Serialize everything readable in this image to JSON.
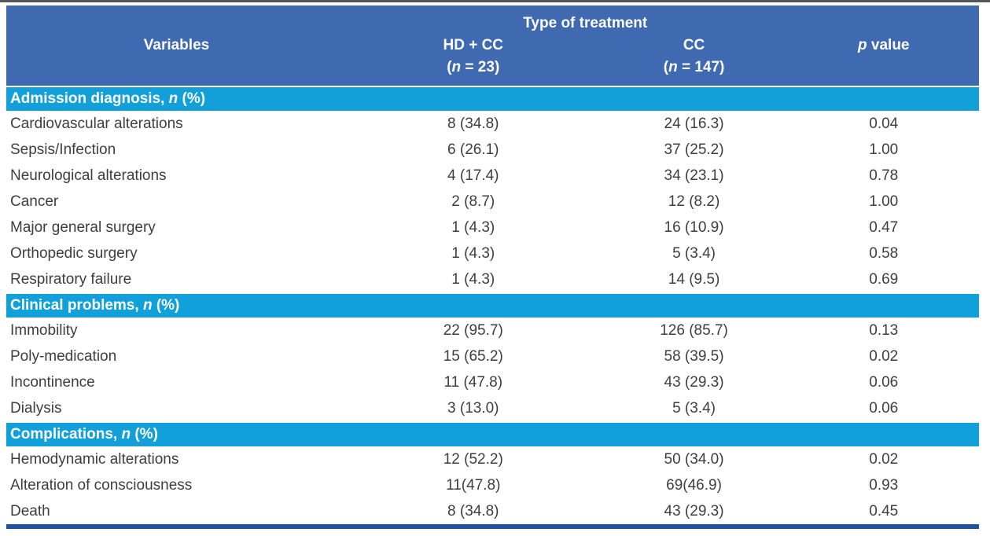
{
  "colors": {
    "header_bg": "#3F69B1",
    "section_bg": "#12A0DA",
    "top_rule": "#54565A",
    "bottom_rule": "#1F51A4",
    "header_text": "#FFFFFF",
    "body_text": "#3E3E40"
  },
  "header": {
    "spanner": "Type of treatment",
    "variables": "Variables",
    "group_hdcc": {
      "label": "HD + CC",
      "n_pre": "(",
      "n_italic": "n",
      "n_post": " = 23)"
    },
    "group_cc": {
      "label": "CC",
      "n_pre": "(",
      "n_italic": "n",
      "n_post": " = 147)"
    },
    "p_column": {
      "italic": "p",
      "rest": " value"
    }
  },
  "sections": [
    {
      "title_prefix": "Admission diagnosis, ",
      "title_italic": "n",
      "title_suffix": " (%)",
      "rows": [
        {
          "variable": "Cardiovascular alterations",
          "hdcc": "8 (34.8)",
          "cc": "24 (16.3)",
          "p": "0.04"
        },
        {
          "variable": "Sepsis/Infection",
          "hdcc": "6 (26.1)",
          "cc": "37 (25.2)",
          "p": "1.00"
        },
        {
          "variable": "Neurological alterations",
          "hdcc": "4 (17.4)",
          "cc": "34 (23.1)",
          "p": "0.78"
        },
        {
          "variable": "Cancer",
          "hdcc": "2 (8.7)",
          "cc": "12 (8.2)",
          "p": "1.00"
        },
        {
          "variable": "Major general surgery",
          "hdcc": "1 (4.3)",
          "cc": "16 (10.9)",
          "p": "0.47"
        },
        {
          "variable": "Orthopedic surgery",
          "hdcc": "1 (4.3)",
          "cc": "5 (3.4)",
          "p": "0.58"
        },
        {
          "variable": "Respiratory failure",
          "hdcc": "1 (4.3)",
          "cc": "14 (9.5)",
          "p": "0.69"
        }
      ]
    },
    {
      "title_prefix": "Clinical problems, ",
      "title_italic": "n",
      "title_suffix": " (%)",
      "rows": [
        {
          "variable": "Immobility",
          "hdcc": "22 (95.7)",
          "cc": "126 (85.7)",
          "p": "0.13"
        },
        {
          "variable": "Poly-medication",
          "hdcc": "15 (65.2)",
          "cc": "58 (39.5)",
          "p": "0.02"
        },
        {
          "variable": "Incontinence",
          "hdcc": "11 (47.8)",
          "cc": "43 (29.3)",
          "p": "0.06"
        },
        {
          "variable": "Dialysis",
          "hdcc": "3 (13.0)",
          "cc": "5 (3.4)",
          "p": "0.06"
        }
      ]
    },
    {
      "title_prefix": "Complications, ",
      "title_italic": "n",
      "title_suffix": " (%)",
      "rows": [
        {
          "variable": "Hemodynamic alterations",
          "hdcc": "12 (52.2)",
          "cc": "50 (34.0)",
          "p": "0.02"
        },
        {
          "variable": "Alteration of consciousness",
          "hdcc": "11(47.8)",
          "cc": "69(46.9)",
          "p": "0.93"
        },
        {
          "variable": "Death",
          "hdcc": "8 (34.8)",
          "cc": "43 (29.3)",
          "p": "0.45"
        }
      ]
    }
  ],
  "chart_data": {
    "type": "table",
    "title": "Type of treatment",
    "columns": [
      "Variables",
      "HD + CC (n = 23)",
      "CC (n = 147)",
      "p value"
    ]
  }
}
